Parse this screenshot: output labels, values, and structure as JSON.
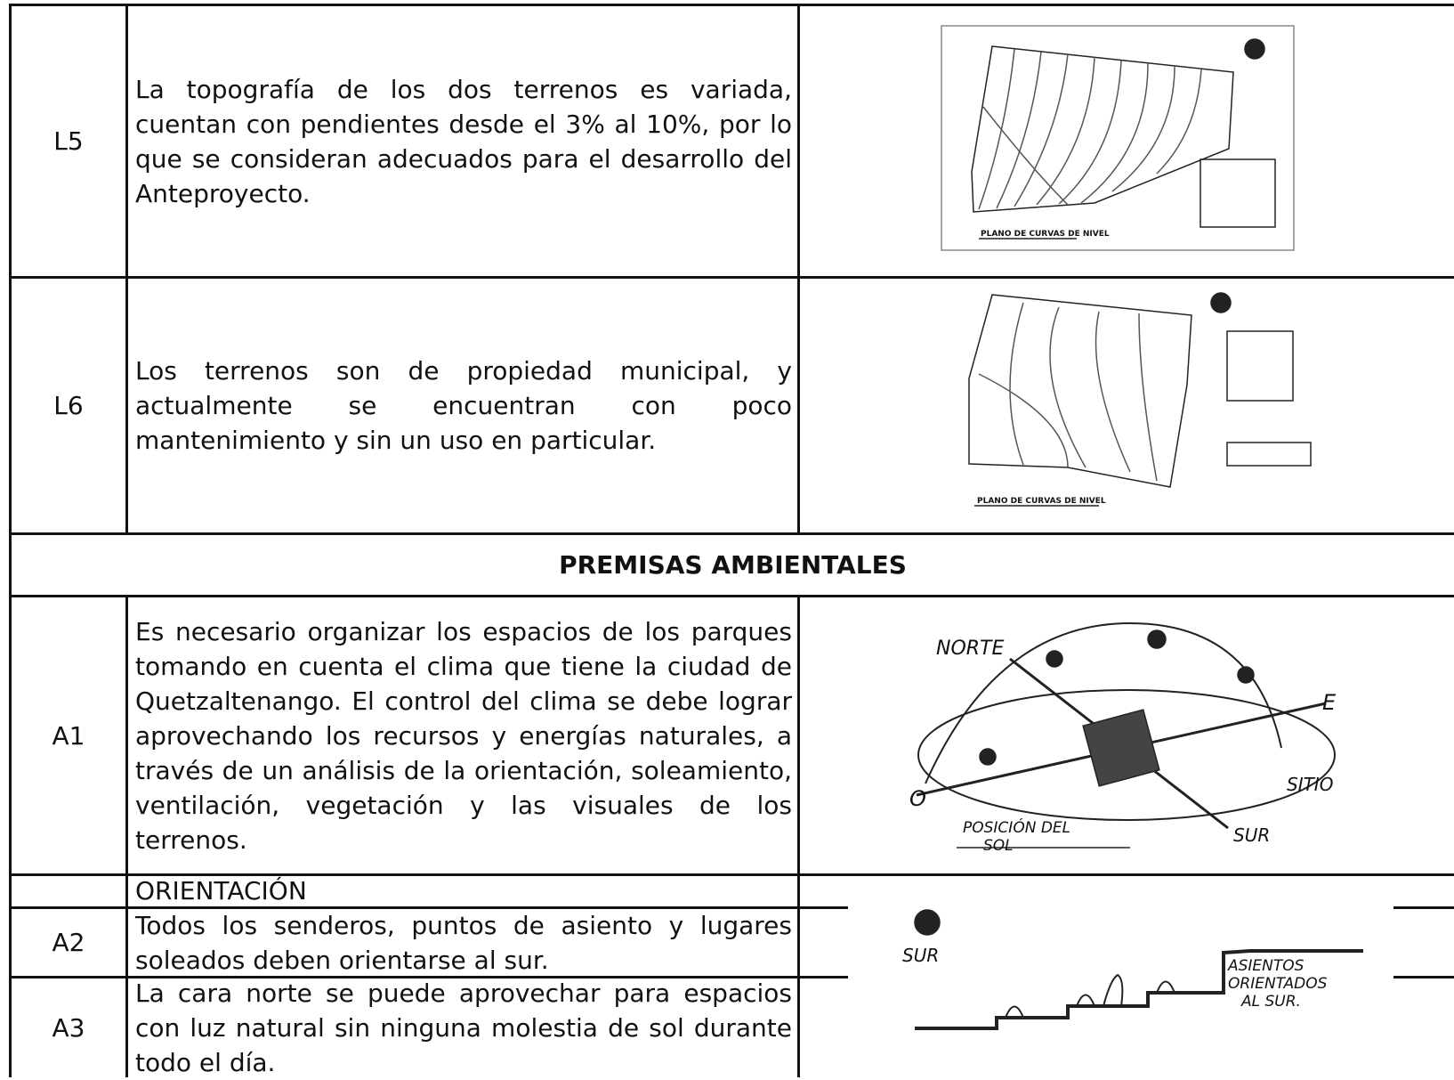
{
  "rows_top": [
    {
      "code": "L5",
      "text": "La topografía de los dos terrenos es variada, cuentan con pendientes desde el 3% al 10%, por lo que se consideran adecuados para el desarrollo del Anteproyecto.",
      "figure_caption": "PLANO DE CURVAS DE NIVEL"
    },
    {
      "code": "L6",
      "text": "Los terrenos son de propiedad municipal, y actualmente se encuentran con poco mantenimiento y sin un uso en particular.",
      "figure_caption": "PLANO DE CURVAS DE NIVEL"
    }
  ],
  "section_title": "PREMISAS AMBIENTALES",
  "rows": [
    {
      "code": "A1",
      "text": "Es necesario organizar los espacios de los parques tomando en cuenta el clima que tiene la ciudad de Quetzaltenango. El control del clima se debe lograr aprovechando los recursos y energías naturales, a través de un análisis de la orientación, soleamiento, ventilación, vegetación y las visuales de los terrenos."
    },
    {
      "subheading": "ORIENTACIÓN"
    },
    {
      "code": "A2",
      "text": "Todos los senderos, puntos de asiento  y lugares soleados deben orientarse al sur."
    },
    {
      "code": "A3",
      "text": "La cara norte se puede aprovechar para espacios con luz natural sin ninguna molestia de sol durante todo el día."
    }
  ],
  "sketch_a1": {
    "labels": [
      "NORTE",
      "E",
      "O",
      "SUR",
      "SITIO",
      "POSICIÓN DEL",
      "SOL"
    ]
  },
  "sketch_a2": {
    "labels": [
      "SUR",
      "ASIENTOS",
      "ORIENTADOS",
      "AL SUR."
    ]
  }
}
